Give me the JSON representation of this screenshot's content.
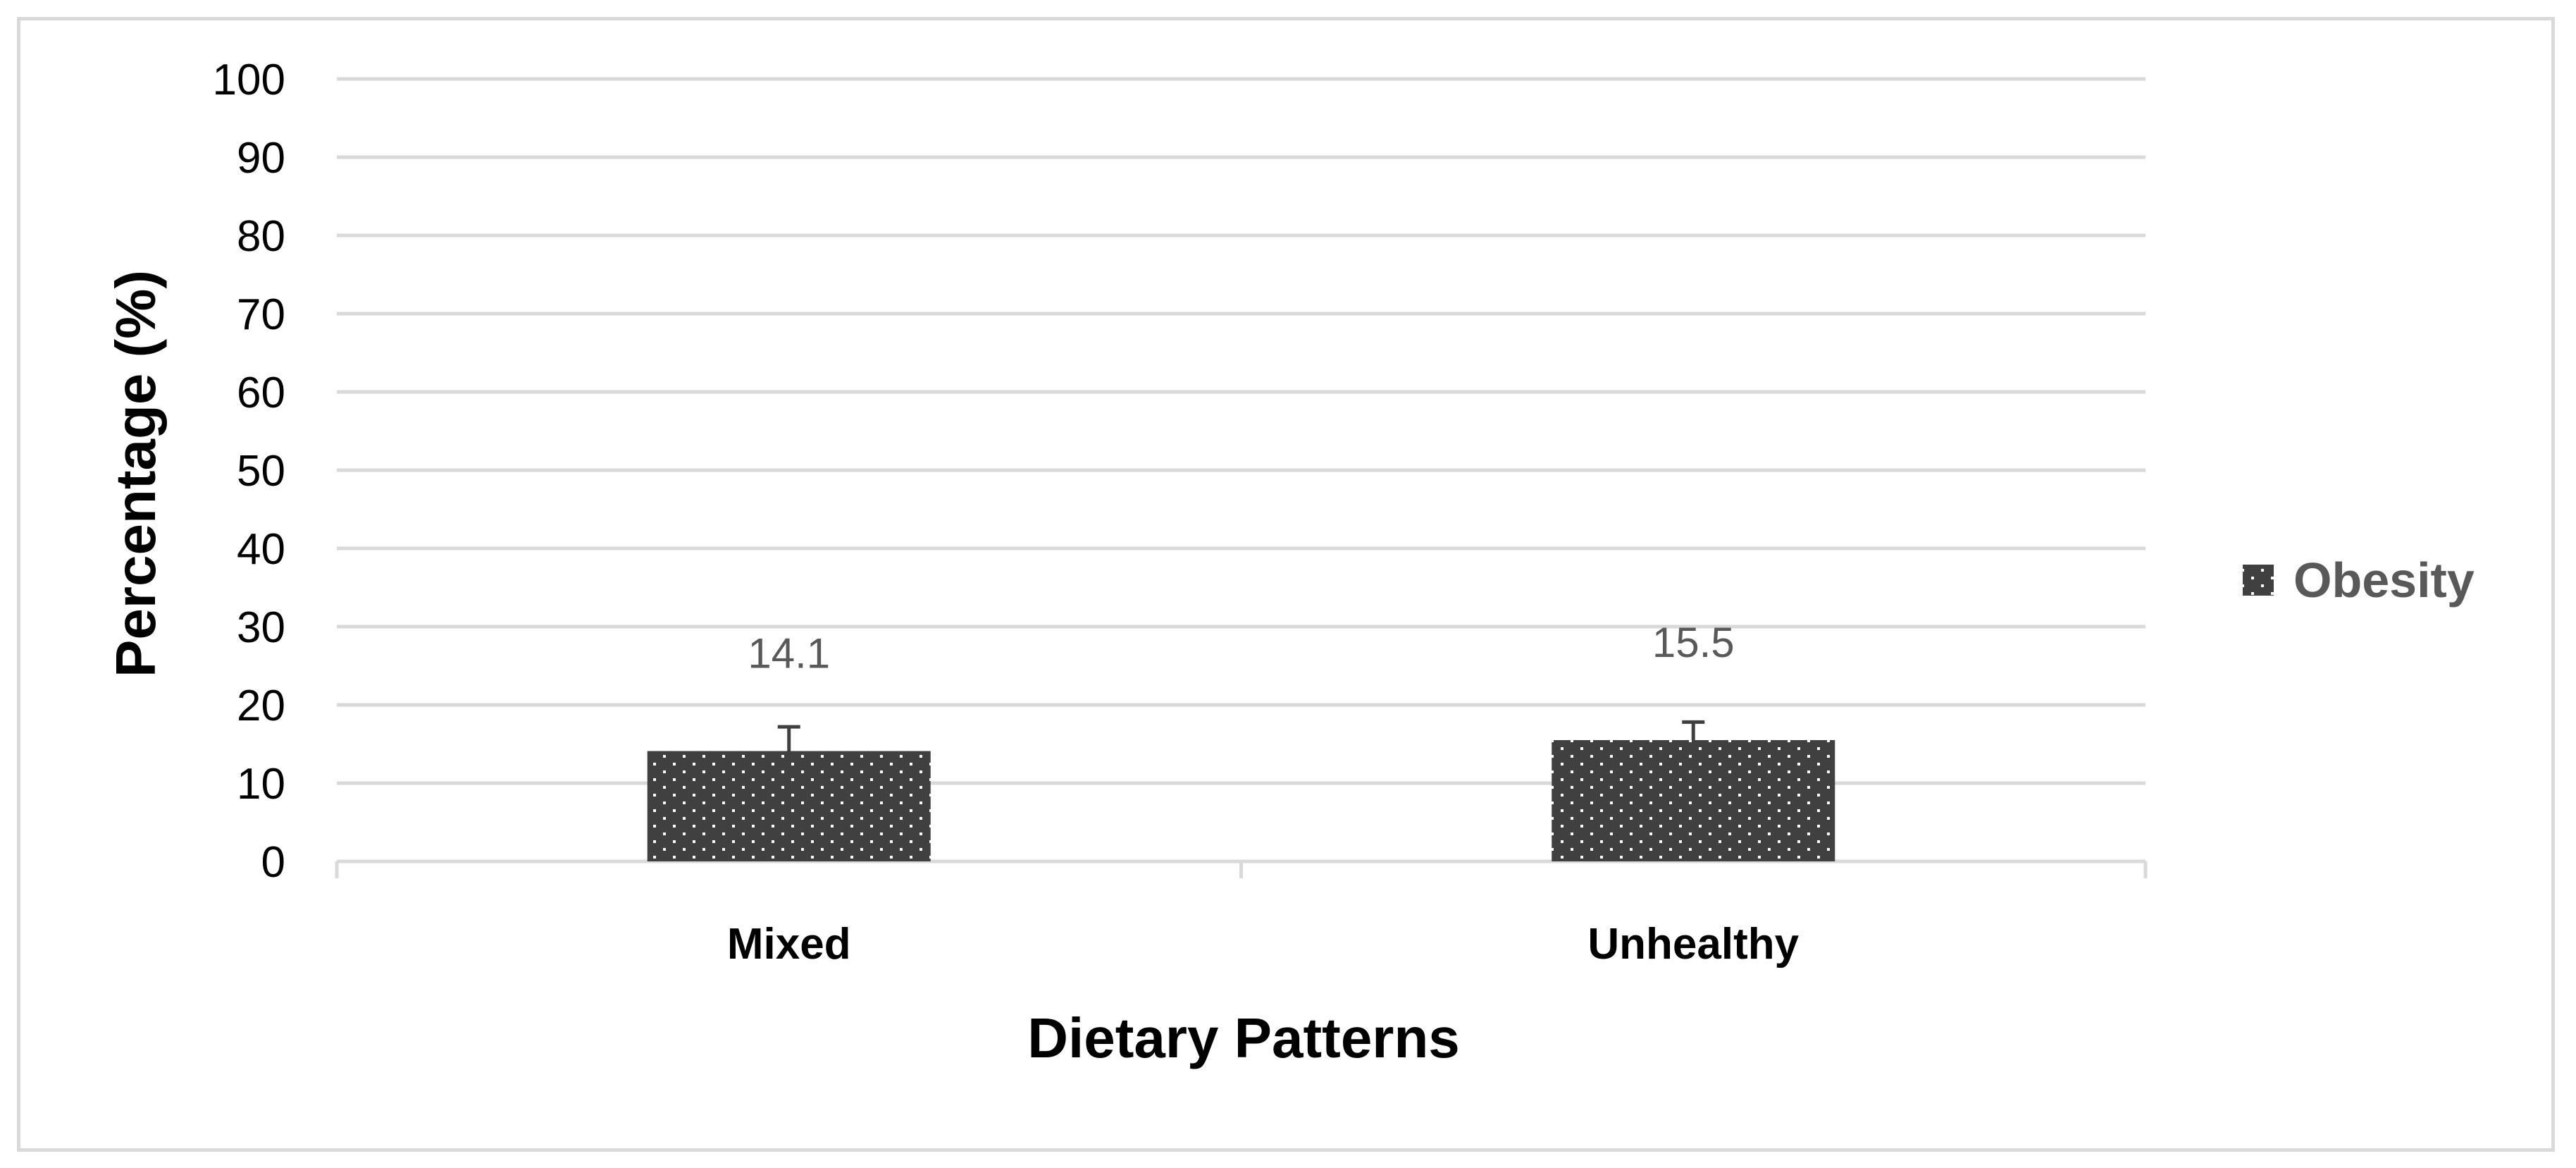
{
  "chart_data": {
    "type": "bar",
    "categories": [
      "Mixed",
      "Unhealthy"
    ],
    "series": [
      {
        "name": "Obesity",
        "values": [
          14.1,
          15.5
        ],
        "error_upper": [
          17.2,
          17.8
        ],
        "color": "#404040",
        "pattern": "dotted"
      }
    ],
    "data_labels": [
      "14.1",
      "15.5"
    ],
    "xlabel": "Dietary Patterns",
    "ylabel": "Percentage (%)",
    "ylim": [
      0,
      100
    ],
    "yticks": [
      "0",
      "10",
      "20",
      "30",
      "40",
      "50",
      "60",
      "70",
      "80",
      "90",
      "100"
    ],
    "grid": true,
    "gridline_color": "#d9d9d9",
    "legend_position": "right"
  }
}
